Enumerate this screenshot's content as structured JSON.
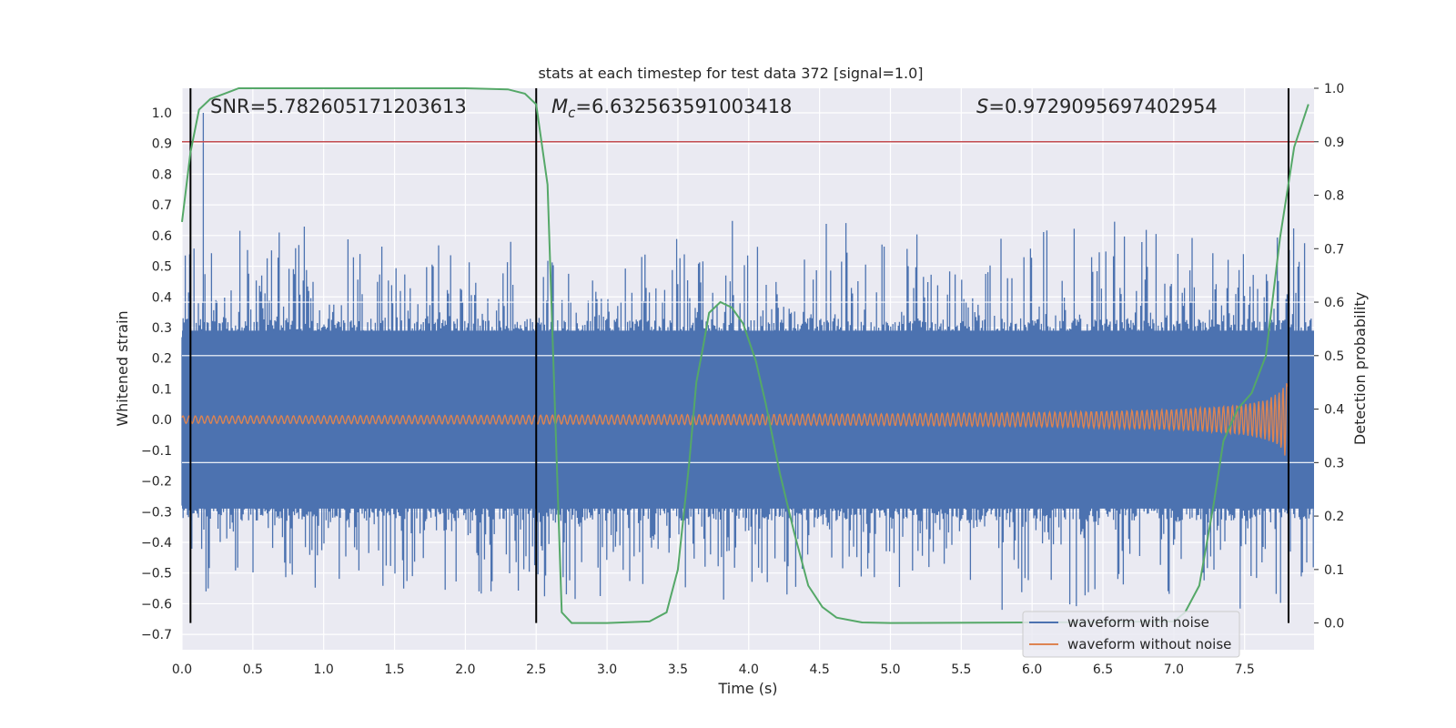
{
  "chart_data": {
    "type": "line",
    "title": "stats at each timestep for test data 372 [signal=1.0]",
    "xlabel": "Time (s)",
    "ylabel": "Whitened strain",
    "y2label": "Detection probability",
    "xlim": [
      0.0,
      7.99
    ],
    "ylim": [
      -0.75,
      1.08
    ],
    "y2lim": [
      -0.05,
      1.0
    ],
    "xticks": [
      "0.0",
      "0.5",
      "1.0",
      "1.5",
      "2.0",
      "2.5",
      "3.0",
      "3.5",
      "4.0",
      "4.5",
      "5.0",
      "5.5",
      "6.0",
      "6.5",
      "7.0",
      "7.5"
    ],
    "yticks": [
      "1.0",
      "0.9",
      "0.8",
      "0.7",
      "0.6",
      "0.5",
      "0.4",
      "0.3",
      "0.2",
      "0.1",
      "0.0",
      "−0.1",
      "−0.2",
      "−0.3",
      "−0.4",
      "−0.5",
      "−0.6",
      "−0.7"
    ],
    "y2ticks": [
      "1.0",
      "0.9",
      "0.8",
      "0.7",
      "0.6",
      "0.5",
      "0.4",
      "0.3",
      "0.2",
      "0.1",
      "0.0"
    ],
    "annotations": {
      "snr": "SNR=5.782605171203613",
      "mc_symbol": "M",
      "mc_sub": "c",
      "mc_value": "=6.632563591003418",
      "s_symbol": "S",
      "s_value": "=0.9729095697402954"
    },
    "legend": {
      "placement": "lower-right",
      "entries": [
        "waveform with noise",
        "waveform without noise"
      ]
    },
    "vertical_markers": [
      0.06,
      2.5,
      7.81
    ],
    "threshold_line": 0.9,
    "noise_envelope": {
      "core_amplitude": 0.33,
      "spike_max": 0.55,
      "spike_min": -0.55,
      "max_peak": 1.0,
      "max_peak_time": 0.15
    },
    "signal_envelope": {
      "t": [
        0.0,
        1.0,
        2.0,
        3.0,
        4.0,
        5.0,
        6.0,
        6.5,
        7.0,
        7.3,
        7.5,
        7.65,
        7.75,
        7.8
      ],
      "amp": [
        0.012,
        0.013,
        0.014,
        0.015,
        0.017,
        0.019,
        0.023,
        0.027,
        0.033,
        0.042,
        0.05,
        0.065,
        0.09,
        0.13
      ]
    },
    "series": [
      {
        "name": "detection probability",
        "x": [
          0.0,
          0.06,
          0.12,
          0.2,
          0.3,
          0.4,
          0.6,
          1.0,
          1.5,
          2.0,
          2.3,
          2.42,
          2.5,
          2.58,
          2.62,
          2.68,
          2.75,
          3.0,
          3.3,
          3.42,
          3.5,
          3.58,
          3.63,
          3.68,
          3.72,
          3.8,
          3.88,
          3.96,
          4.05,
          4.12,
          4.22,
          4.32,
          4.42,
          4.52,
          4.62,
          4.8,
          5.0,
          6.0,
          7.0,
          7.08,
          7.18,
          7.28,
          7.35,
          7.45,
          7.55,
          7.65,
          7.75,
          7.85,
          7.95
        ],
        "values": [
          0.75,
          0.88,
          0.96,
          0.98,
          0.99,
          1.0,
          1.0,
          1.0,
          1.0,
          1.0,
          0.998,
          0.99,
          0.97,
          0.82,
          0.5,
          0.02,
          0.0,
          0.0,
          0.003,
          0.02,
          0.1,
          0.3,
          0.45,
          0.52,
          0.58,
          0.6,
          0.59,
          0.56,
          0.49,
          0.41,
          0.28,
          0.17,
          0.07,
          0.03,
          0.01,
          0.001,
          0.0,
          0.001,
          0.003,
          0.02,
          0.07,
          0.22,
          0.34,
          0.4,
          0.43,
          0.5,
          0.72,
          0.89,
          0.97
        ]
      }
    ]
  },
  "colors": {
    "plot_bg": "#eaeaf2",
    "grid": "#ffffff",
    "noise": "#4c72b0",
    "signal": "#dd8452",
    "probability": "#55a868",
    "threshold": "#c44e52",
    "markers": "#000000"
  }
}
